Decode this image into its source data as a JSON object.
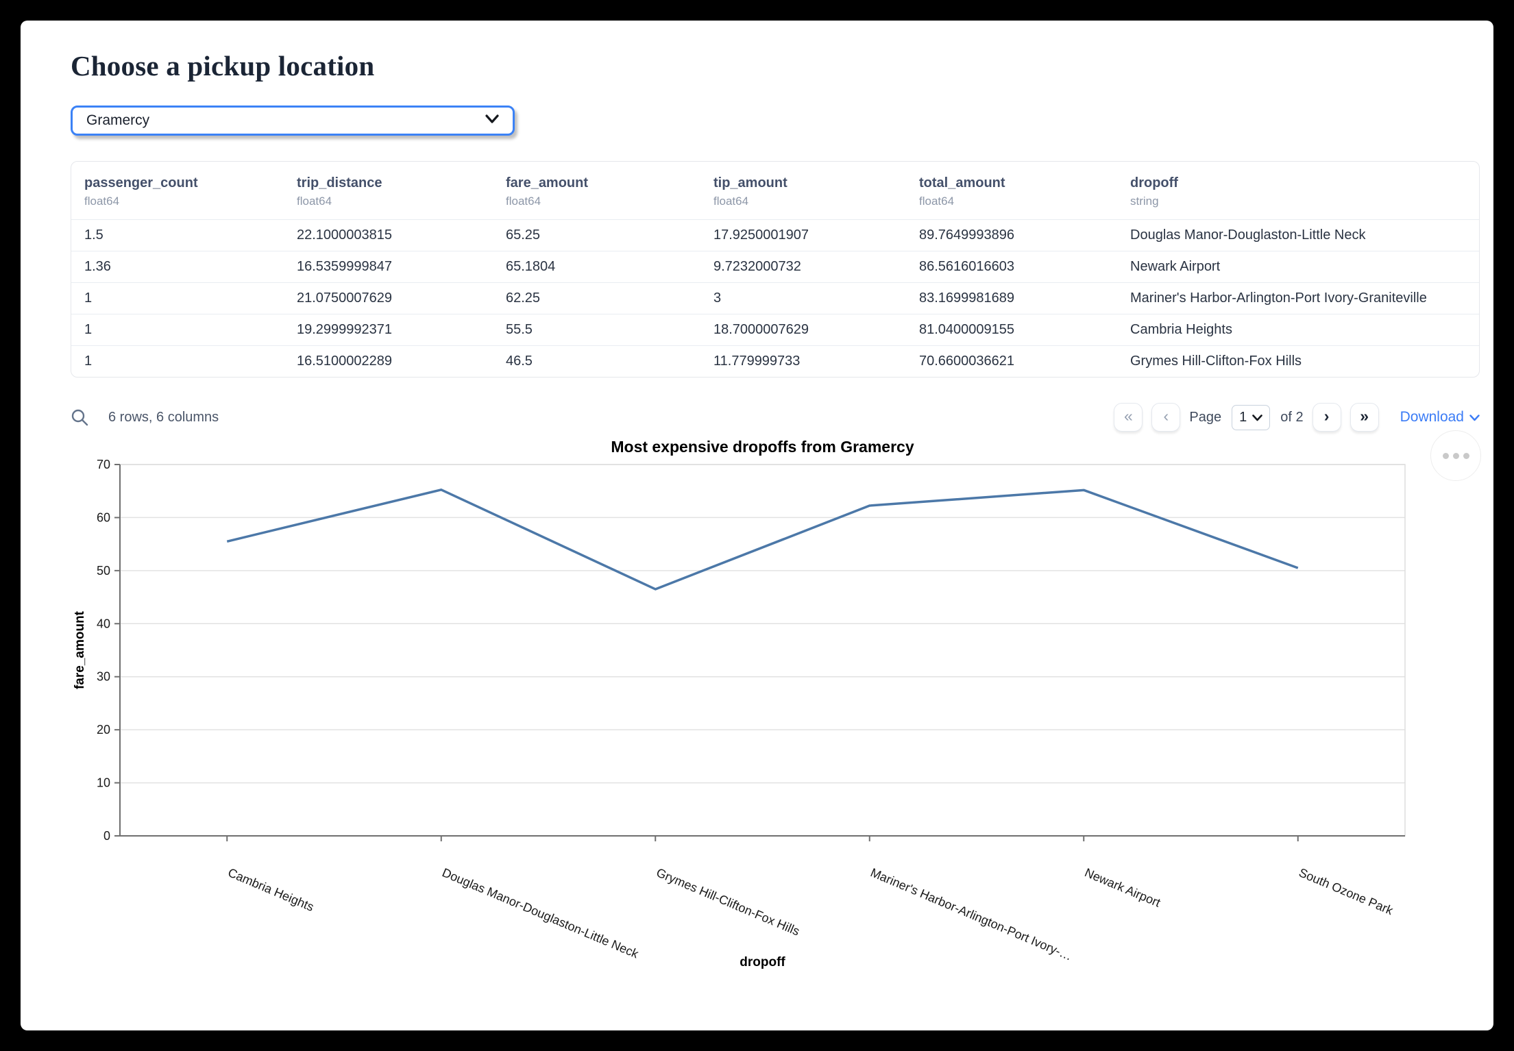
{
  "page": {
    "title": "Choose a pickup location"
  },
  "pickup_select": {
    "value": "Gramercy"
  },
  "table": {
    "columns": [
      {
        "name": "passenger_count",
        "type": "float64"
      },
      {
        "name": "trip_distance",
        "type": "float64"
      },
      {
        "name": "fare_amount",
        "type": "float64"
      },
      {
        "name": "tip_amount",
        "type": "float64"
      },
      {
        "name": "total_amount",
        "type": "float64"
      },
      {
        "name": "dropoff",
        "type": "string"
      }
    ],
    "rows": [
      [
        "1.5",
        "22.1000003815",
        "65.25",
        "17.9250001907",
        "89.7649993896",
        "Douglas Manor-Douglaston-Little Neck"
      ],
      [
        "1.36",
        "16.5359999847",
        "65.1804",
        "9.7232000732",
        "86.5616016603",
        "Newark Airport"
      ],
      [
        "1",
        "21.0750007629",
        "62.25",
        "3",
        "83.1699981689",
        "Mariner's Harbor-Arlington-Port Ivory-Graniteville"
      ],
      [
        "1",
        "19.2999992371",
        "55.5",
        "18.7000007629",
        "81.0400009155",
        "Cambria Heights"
      ],
      [
        "1",
        "16.5100002289",
        "46.5",
        "11.779999733",
        "70.6600036621",
        "Grymes Hill-Clifton-Fox Hills"
      ]
    ],
    "footer": {
      "summary": "6 rows, 6 columns",
      "page_label": "Page",
      "page_value": "1",
      "page_total_label": "of 2",
      "download_label": "Download"
    }
  },
  "icons": {
    "search": "magnifier",
    "first_page": "«",
    "prev_page": "‹",
    "next_page": "›",
    "last_page": "»",
    "chart_menu": "ellipsis",
    "chevron_down": "v"
  },
  "chart_data": {
    "type": "line",
    "title": "Most expensive dropoffs from Gramercy",
    "xlabel": "dropoff",
    "ylabel": "fare_amount",
    "categories": [
      "Cambria Heights",
      "Douglas Manor-Douglaston-Little Neck",
      "Grymes Hill-Clifton-Fox Hills",
      "Mariner's Harbor-Arlington-Port Ivory-Graniteville",
      "Newark Airport",
      "South Ozone Park"
    ],
    "x_tick_labels": [
      "Cambria Heights",
      "Douglas Manor-Douglaston-Little Neck",
      "Grymes Hill-Clifton-Fox Hills",
      "Mariner's Harbor-Arlington-Port Ivory-…",
      "Newark Airport",
      "South Ozone Park"
    ],
    "values": [
      55.5,
      65.25,
      46.5,
      62.25,
      65.1804,
      50.5
    ],
    "ylim": [
      0,
      70
    ],
    "yticks": [
      0,
      10,
      20,
      30,
      40,
      50,
      60,
      70
    ],
    "grid": true,
    "legend": "none",
    "line_color": "#4c78a8"
  },
  "colors": {
    "accent_blue": "#3b82f6",
    "link_blue": "#3b7cf6",
    "line_blue": "#4c78a8",
    "grid_gray": "#e2e2e2",
    "axis_gray": "#6f6f6f"
  }
}
